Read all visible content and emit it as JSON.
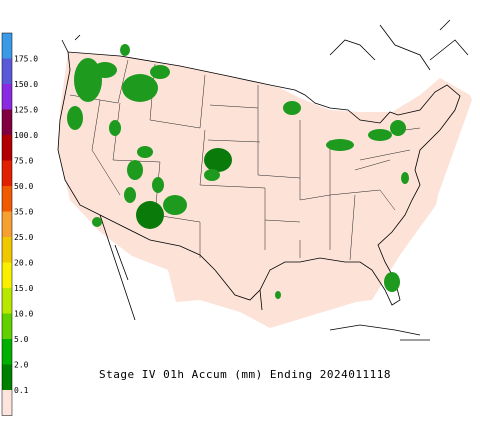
{
  "legend": {
    "items": [
      {
        "label": "175.0",
        "color": "#3b9ae8"
      },
      {
        "label": "150.0",
        "color": "#5a5ad8"
      },
      {
        "label": "125.0",
        "color": "#8a2be2"
      },
      {
        "label": "100.0",
        "color": "#800040"
      },
      {
        "label": "75.0",
        "color": "#b00000"
      },
      {
        "label": "50.0",
        "color": "#e02000"
      },
      {
        "label": "35.0",
        "color": "#f05a00"
      },
      {
        "label": "25.0",
        "color": "#f5a030"
      },
      {
        "label": "20.0",
        "color": "#f0c800"
      },
      {
        "label": "15.0",
        "color": "#f8f000"
      },
      {
        "label": "10.0",
        "color": "#b8e800"
      },
      {
        "label": "5.0",
        "color": "#60d000"
      },
      {
        "label": "2.0",
        "color": "#00b000"
      },
      {
        "label": "0.1",
        "color": "#008000"
      }
    ],
    "base_color": "#fde4dc"
  },
  "caption": "Stage IV 01h Accum (mm) Ending 2024011118"
}
